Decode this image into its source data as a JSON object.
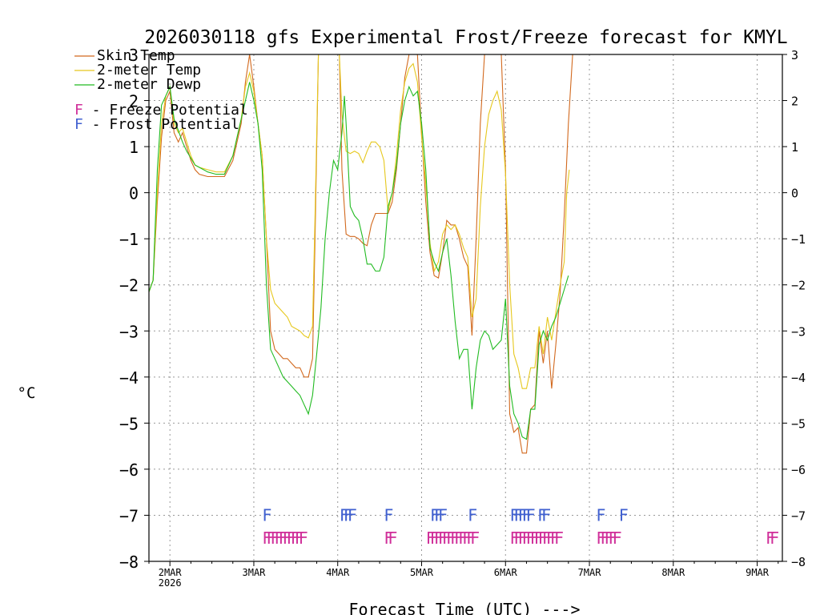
{
  "chart_data": {
    "type": "line",
    "title": "2026030118 gfs Experimental Frost/Freeze forecast for KMYL",
    "xlabel": "Forecast Time (UTC) --->",
    "ylabel": "°C",
    "ylim": [
      -8,
      3
    ],
    "yticks": [
      -8,
      -7,
      -6,
      -5,
      -4,
      -3,
      -2,
      -1,
      0,
      1,
      2,
      3
    ],
    "xlim": [
      -0.25,
      7.3
    ],
    "xticks": [
      {
        "x": 0,
        "label": "2MAR",
        "sublabel": "2026"
      },
      {
        "x": 1,
        "label": "3MAR"
      },
      {
        "x": 2,
        "label": "4MAR"
      },
      {
        "x": 3,
        "label": "5MAR"
      },
      {
        "x": 4,
        "label": "6MAR"
      },
      {
        "x": 5,
        "label": "7MAR"
      },
      {
        "x": 6,
        "label": "8MAR"
      },
      {
        "x": 7,
        "label": "9MAR"
      }
    ],
    "grid": true,
    "legend": [
      {
        "label": "Skin Temp",
        "color": "#d2691e"
      },
      {
        "label": "2-meter Temp",
        "color": "#e6c81e"
      },
      {
        "label": "2-meter Dewp",
        "color": "#22bb22"
      }
    ],
    "legend_markers": [
      {
        "text": "F - Freeze Potential",
        "color": "#d0309a"
      },
      {
        "text": "F - Frost Potential",
        "color": "#4060d0"
      }
    ],
    "series": [
      {
        "name": "Skin Temp",
        "color": "#d2691e",
        "points": [
          [
            -0.25,
            -2.15
          ],
          [
            -0.2,
            -1.9
          ],
          [
            -0.15,
            -0.2
          ],
          [
            -0.1,
            1.2
          ],
          [
            -0.05,
            2.0
          ],
          [
            0,
            2.2
          ],
          [
            0.05,
            1.3
          ],
          [
            0.1,
            1.1
          ],
          [
            0.15,
            1.3
          ],
          [
            0.2,
            1.0
          ],
          [
            0.25,
            0.7
          ],
          [
            0.3,
            0.5
          ],
          [
            0.35,
            0.4
          ],
          [
            0.45,
            0.35
          ],
          [
            0.55,
            0.35
          ],
          [
            0.65,
            0.35
          ],
          [
            0.75,
            0.7
          ],
          [
            0.85,
            1.5
          ],
          [
            0.9,
            2.4
          ],
          [
            0.95,
            3.0
          ],
          [
            1.0,
            2.3
          ],
          [
            1.05,
            1.5
          ],
          [
            1.1,
            0.8
          ],
          [
            1.15,
            -1.0
          ],
          [
            1.2,
            -3.0
          ],
          [
            1.25,
            -3.4
          ],
          [
            1.3,
            -3.5
          ],
          [
            1.35,
            -3.6
          ],
          [
            1.4,
            -3.6
          ],
          [
            1.45,
            -3.7
          ],
          [
            1.5,
            -3.8
          ],
          [
            1.55,
            -3.8
          ],
          [
            1.6,
            -4.0
          ],
          [
            1.65,
            -4.0
          ],
          [
            1.7,
            -3.6
          ],
          [
            1.73,
            -1.0
          ],
          [
            1.77,
            3.0
          ]
        ],
        "points2": [
          [
            2.02,
            3.0
          ],
          [
            2.05,
            0.5
          ],
          [
            2.1,
            -0.9
          ],
          [
            2.15,
            -0.95
          ],
          [
            2.2,
            -0.95
          ],
          [
            2.25,
            -1.0
          ],
          [
            2.3,
            -1.1
          ],
          [
            2.35,
            -1.15
          ],
          [
            2.4,
            -0.7
          ],
          [
            2.45,
            -0.45
          ],
          [
            2.5,
            -0.45
          ],
          [
            2.55,
            -0.45
          ],
          [
            2.6,
            -0.45
          ],
          [
            2.65,
            -0.2
          ],
          [
            2.7,
            0.5
          ],
          [
            2.75,
            1.5
          ],
          [
            2.8,
            2.5
          ],
          [
            2.85,
            3.0
          ]
        ],
        "points3": [
          [
            2.95,
            3.0
          ],
          [
            3.0,
            1.3
          ],
          [
            3.05,
            -0.2
          ],
          [
            3.1,
            -1.3
          ],
          [
            3.15,
            -1.8
          ],
          [
            3.2,
            -1.85
          ],
          [
            3.25,
            -1.3
          ],
          [
            3.3,
            -0.6
          ],
          [
            3.35,
            -0.7
          ],
          [
            3.4,
            -0.7
          ],
          [
            3.45,
            -1.0
          ],
          [
            3.5,
            -1.4
          ],
          [
            3.55,
            -1.6
          ],
          [
            3.6,
            -3.1
          ],
          [
            3.65,
            -1.0
          ],
          [
            3.7,
            1.5
          ],
          [
            3.75,
            3.0
          ]
        ],
        "points4": [
          [
            3.95,
            3.0
          ],
          [
            4.0,
            0.5
          ],
          [
            4.05,
            -4.8
          ],
          [
            4.1,
            -5.2
          ],
          [
            4.15,
            -5.1
          ],
          [
            4.2,
            -5.65
          ],
          [
            4.25,
            -5.65
          ],
          [
            4.3,
            -4.7
          ],
          [
            4.35,
            -4.6
          ],
          [
            4.4,
            -3.0
          ],
          [
            4.45,
            -3.7
          ],
          [
            4.5,
            -3.0
          ],
          [
            4.55,
            -4.25
          ],
          [
            4.6,
            -3.3
          ],
          [
            4.65,
            -2.2
          ],
          [
            4.7,
            -0.5
          ],
          [
            4.75,
            1.5
          ],
          [
            4.8,
            3.0
          ]
        ]
      },
      {
        "name": "2-meter Temp",
        "color": "#e6c81e",
        "points": [
          [
            -0.25,
            -2.15
          ],
          [
            -0.2,
            -1.9
          ],
          [
            -0.15,
            0.0
          ],
          [
            -0.1,
            1.5
          ],
          [
            -0.05,
            2.1
          ],
          [
            0,
            2.3
          ],
          [
            0.05,
            1.5
          ],
          [
            0.1,
            1.3
          ],
          [
            0.15,
            1.4
          ],
          [
            0.2,
            1.1
          ],
          [
            0.25,
            0.8
          ],
          [
            0.3,
            0.6
          ],
          [
            0.35,
            0.55
          ],
          [
            0.45,
            0.5
          ],
          [
            0.55,
            0.45
          ],
          [
            0.65,
            0.45
          ],
          [
            0.75,
            0.8
          ],
          [
            0.85,
            1.6
          ],
          [
            0.9,
            2.3
          ],
          [
            0.95,
            2.6
          ],
          [
            1.0,
            2.2
          ],
          [
            1.05,
            1.5
          ],
          [
            1.1,
            0.8
          ],
          [
            1.15,
            -1.0
          ],
          [
            1.2,
            -2.1
          ],
          [
            1.25,
            -2.4
          ],
          [
            1.3,
            -2.5
          ],
          [
            1.35,
            -2.6
          ],
          [
            1.4,
            -2.7
          ],
          [
            1.45,
            -2.9
          ],
          [
            1.5,
            -2.95
          ],
          [
            1.55,
            -3.0
          ],
          [
            1.6,
            -3.1
          ],
          [
            1.65,
            -3.15
          ],
          [
            1.7,
            -2.9
          ],
          [
            1.73,
            -0.5
          ],
          [
            1.77,
            3.0
          ]
        ],
        "points2": [
          [
            2.02,
            3.0
          ],
          [
            2.05,
            1.7
          ],
          [
            2.1,
            0.9
          ],
          [
            2.15,
            0.85
          ],
          [
            2.2,
            0.9
          ],
          [
            2.25,
            0.85
          ],
          [
            2.3,
            0.65
          ],
          [
            2.35,
            0.9
          ],
          [
            2.4,
            1.1
          ],
          [
            2.45,
            1.1
          ],
          [
            2.5,
            1.0
          ],
          [
            2.55,
            0.7
          ],
          [
            2.6,
            -0.4
          ],
          [
            2.65,
            0.0
          ],
          [
            2.7,
            0.8
          ],
          [
            2.75,
            1.8
          ],
          [
            2.8,
            2.4
          ],
          [
            2.85,
            2.7
          ],
          [
            2.9,
            2.8
          ],
          [
            2.95,
            2.4
          ],
          [
            3.0,
            1.2
          ],
          [
            3.05,
            0.2
          ],
          [
            3.1,
            -1.1
          ],
          [
            3.15,
            -1.7
          ],
          [
            3.2,
            -1.5
          ],
          [
            3.25,
            -0.9
          ],
          [
            3.3,
            -0.7
          ],
          [
            3.35,
            -0.8
          ],
          [
            3.4,
            -0.7
          ],
          [
            3.45,
            -0.9
          ],
          [
            3.5,
            -1.2
          ],
          [
            3.55,
            -1.4
          ],
          [
            3.6,
            -2.7
          ],
          [
            3.65,
            -2.3
          ],
          [
            3.7,
            -0.3
          ],
          [
            3.75,
            1.0
          ],
          [
            3.8,
            1.7
          ],
          [
            3.85,
            2.0
          ],
          [
            3.9,
            2.2
          ],
          [
            3.95,
            1.8
          ],
          [
            4.0,
            0.4
          ],
          [
            4.05,
            -2.0
          ],
          [
            4.1,
            -3.5
          ],
          [
            4.15,
            -3.8
          ],
          [
            4.2,
            -4.25
          ],
          [
            4.25,
            -4.25
          ],
          [
            4.3,
            -3.8
          ],
          [
            4.35,
            -3.8
          ],
          [
            4.4,
            -2.9
          ],
          [
            4.45,
            -3.5
          ],
          [
            4.5,
            -2.7
          ],
          [
            4.55,
            -3.2
          ],
          [
            4.6,
            -2.6
          ],
          [
            4.65,
            -2.0
          ],
          [
            4.7,
            -1.5
          ],
          [
            4.73,
            0.0
          ],
          [
            4.76,
            0.5
          ]
        ]
      },
      {
        "name": "2-meter Dewp",
        "color": "#22bb22",
        "points": [
          [
            -0.25,
            -2.15
          ],
          [
            -0.2,
            -1.9
          ],
          [
            -0.15,
            0.5
          ],
          [
            -0.1,
            1.9
          ],
          [
            -0.05,
            2.1
          ],
          [
            0,
            2.3
          ],
          [
            0.05,
            1.6
          ],
          [
            0.1,
            1.35
          ],
          [
            0.15,
            1.1
          ],
          [
            0.2,
            0.9
          ],
          [
            0.25,
            0.75
          ],
          [
            0.3,
            0.6
          ],
          [
            0.35,
            0.55
          ],
          [
            0.45,
            0.45
          ],
          [
            0.55,
            0.4
          ],
          [
            0.65,
            0.4
          ],
          [
            0.75,
            0.8
          ],
          [
            0.85,
            1.6
          ],
          [
            0.9,
            2.0
          ],
          [
            0.95,
            2.4
          ],
          [
            1.0,
            2.0
          ],
          [
            1.05,
            1.5
          ],
          [
            1.1,
            0.5
          ],
          [
            1.15,
            -2.0
          ],
          [
            1.2,
            -3.4
          ],
          [
            1.25,
            -3.6
          ],
          [
            1.3,
            -3.8
          ],
          [
            1.35,
            -4.0
          ],
          [
            1.4,
            -4.1
          ],
          [
            1.45,
            -4.2
          ],
          [
            1.5,
            -4.3
          ],
          [
            1.55,
            -4.4
          ],
          [
            1.6,
            -4.6
          ],
          [
            1.65,
            -4.8
          ],
          [
            1.7,
            -4.4
          ],
          [
            1.75,
            -3.5
          ],
          [
            1.8,
            -2.5
          ],
          [
            1.85,
            -1.0
          ],
          [
            1.9,
            0.0
          ],
          [
            1.95,
            0.7
          ],
          [
            2.0,
            0.5
          ],
          [
            2.05,
            1.3
          ],
          [
            2.08,
            2.1
          ],
          [
            2.1,
            1.5
          ],
          [
            2.15,
            -0.3
          ],
          [
            2.2,
            -0.5
          ],
          [
            2.25,
            -0.6
          ],
          [
            2.3,
            -1.0
          ],
          [
            2.35,
            -1.55
          ],
          [
            2.4,
            -1.55
          ],
          [
            2.45,
            -1.7
          ],
          [
            2.5,
            -1.7
          ],
          [
            2.55,
            -1.4
          ],
          [
            2.6,
            -0.3
          ],
          [
            2.65,
            0.0
          ],
          [
            2.7,
            0.6
          ],
          [
            2.75,
            1.5
          ],
          [
            2.8,
            2.0
          ],
          [
            2.85,
            2.3
          ],
          [
            2.9,
            2.1
          ],
          [
            2.95,
            2.2
          ],
          [
            3.0,
            1.5
          ],
          [
            3.05,
            0.5
          ],
          [
            3.1,
            -1.2
          ],
          [
            3.15,
            -1.5
          ],
          [
            3.2,
            -1.7
          ],
          [
            3.25,
            -1.3
          ],
          [
            3.3,
            -1.0
          ],
          [
            3.35,
            -1.8
          ],
          [
            3.4,
            -2.8
          ],
          [
            3.45,
            -3.6
          ],
          [
            3.5,
            -3.4
          ],
          [
            3.55,
            -3.4
          ],
          [
            3.6,
            -4.7
          ],
          [
            3.65,
            -3.8
          ],
          [
            3.7,
            -3.2
          ],
          [
            3.75,
            -3.0
          ],
          [
            3.8,
            -3.1
          ],
          [
            3.85,
            -3.4
          ],
          [
            3.9,
            -3.3
          ],
          [
            3.95,
            -3.2
          ],
          [
            4.0,
            -2.3
          ],
          [
            4.05,
            -4.2
          ],
          [
            4.1,
            -4.8
          ],
          [
            4.15,
            -5.0
          ],
          [
            4.2,
            -5.3
          ],
          [
            4.25,
            -5.35
          ],
          [
            4.3,
            -4.7
          ],
          [
            4.35,
            -4.7
          ],
          [
            4.4,
            -3.3
          ],
          [
            4.45,
            -3.0
          ],
          [
            4.5,
            -3.2
          ],
          [
            4.55,
            -2.9
          ],
          [
            4.6,
            -2.7
          ],
          [
            4.65,
            -2.4
          ],
          [
            4.7,
            -2.1
          ],
          [
            4.75,
            -1.8
          ]
        ]
      }
    ],
    "frost_marks": [
      {
        "x": 1.1,
        "count": 1
      },
      {
        "x": 2.02,
        "count": 3
      },
      {
        "x": 2.55,
        "count": 1
      },
      {
        "x": 3.1,
        "count": 3
      },
      {
        "x": 3.55,
        "count": 1
      },
      {
        "x": 4.05,
        "count": 5
      },
      {
        "x": 4.38,
        "count": 2
      },
      {
        "x": 5.08,
        "count": 1
      },
      {
        "x": 5.35,
        "count": 1
      }
    ],
    "freeze_marks": [
      {
        "x": 1.1,
        "count": 10
      },
      {
        "x": 2.55,
        "count": 2
      },
      {
        "x": 3.05,
        "count": 12
      },
      {
        "x": 4.05,
        "count": 12
      },
      {
        "x": 5.08,
        "count": 5
      },
      {
        "x": 7.1,
        "count": 2
      }
    ],
    "mark_letter": "F"
  }
}
